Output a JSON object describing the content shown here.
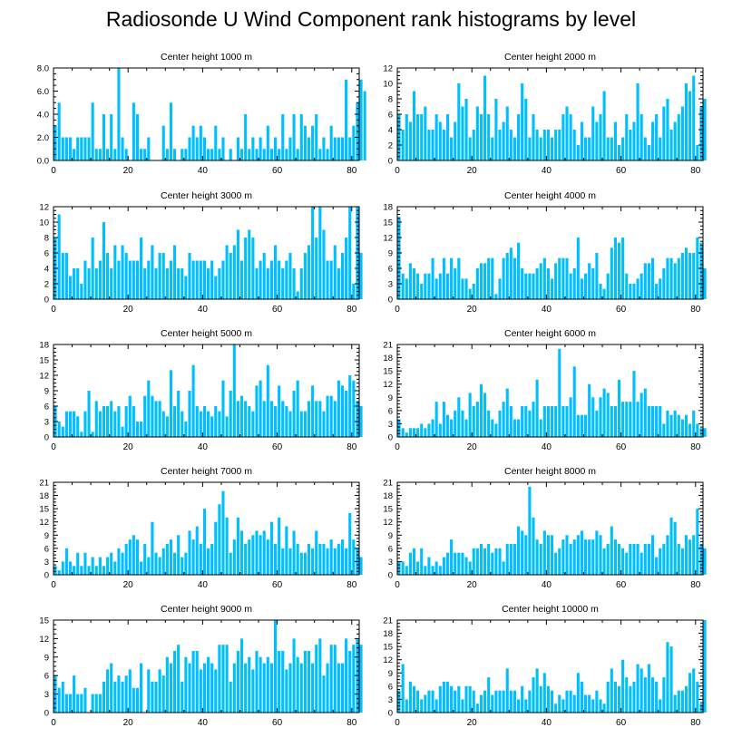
{
  "page_title": "Radiosonde U Wind Component rank histograms by level",
  "colors": {
    "bar": "#00BFFF",
    "axis": "#000000"
  },
  "chart_data": [
    {
      "type": "bar",
      "title": "Center height 1000 m",
      "xlabel": "",
      "ylabel": "",
      "xlim": [
        0,
        82
      ],
      "xticks": [
        0,
        20,
        40,
        60,
        80
      ],
      "ylim": [
        0,
        8
      ],
      "yticks": [
        "0.0",
        "2.0",
        "4.0",
        "6.0",
        "8.0"
      ],
      "values": [
        3,
        5,
        2,
        2,
        2,
        1,
        2,
        2,
        2,
        2,
        5,
        1,
        1,
        4,
        1,
        4,
        1,
        8,
        2,
        1,
        0,
        5,
        4,
        1,
        1,
        2,
        0,
        0,
        0,
        3,
        1,
        5,
        1,
        0,
        1,
        1,
        2,
        3,
        2,
        3,
        2,
        1,
        1,
        3,
        1,
        2,
        0,
        1,
        0,
        2,
        1,
        4,
        1,
        2,
        1,
        2,
        1,
        3,
        1,
        2,
        1,
        4,
        1,
        2,
        4,
        1,
        4,
        3,
        2,
        3,
        4,
        1,
        2,
        1,
        3,
        2,
        2,
        2,
        7,
        2,
        3,
        5,
        7,
        6
      ]
    },
    {
      "type": "bar",
      "title": "Center height 2000 m",
      "xlabel": "",
      "ylabel": "",
      "xlim": [
        0,
        82
      ],
      "xticks": [
        0,
        20,
        40,
        60,
        80
      ],
      "ylim": [
        0,
        12
      ],
      "yticks": [
        "0",
        "2",
        "4",
        "6",
        "8",
        "10",
        "12"
      ],
      "values": [
        6,
        4,
        6,
        5,
        9,
        6,
        6,
        7,
        4,
        4,
        6,
        5,
        4,
        6,
        3,
        5,
        10,
        7,
        8,
        3,
        4,
        7,
        6,
        11,
        6,
        3,
        8,
        4,
        5,
        7,
        4,
        3,
        6,
        10,
        8,
        3,
        6,
        4,
        3,
        4,
        4,
        3,
        4,
        4,
        6,
        7,
        6,
        4,
        2,
        5,
        3,
        3,
        7,
        5,
        6,
        9,
        3,
        3,
        5,
        2,
        3,
        6,
        4,
        5,
        10,
        6,
        3,
        2,
        5,
        6,
        3,
        7,
        8,
        4,
        5,
        6,
        7,
        10,
        9,
        11,
        2,
        7,
        8
      ]
    },
    {
      "type": "bar",
      "title": "Center height 3000 m",
      "xlabel": "",
      "ylabel": "",
      "xlim": [
        0,
        82
      ],
      "xticks": [
        0,
        20,
        40,
        60,
        80
      ],
      "ylim": [
        0,
        12
      ],
      "yticks": [
        "0",
        "2",
        "4",
        "6",
        "8",
        "10",
        "12"
      ],
      "values": [
        8,
        11,
        6,
        6,
        3,
        4,
        4,
        2,
        5,
        4,
        8,
        4,
        5,
        10,
        6,
        4,
        7,
        5,
        7,
        6,
        5,
        5,
        5,
        8,
        4,
        5,
        7,
        4,
        6,
        6,
        4,
        5,
        7,
        4,
        4,
        3,
        6,
        5,
        5,
        5,
        5,
        4,
        5,
        3,
        4,
        5,
        7,
        6,
        7,
        9,
        5,
        8,
        9,
        8,
        4,
        5,
        6,
        4,
        5,
        7,
        5,
        4,
        5,
        6,
        4,
        1,
        4,
        6,
        7,
        12,
        8,
        12,
        9,
        5,
        5,
        7,
        4,
        6,
        8,
        12,
        2,
        12,
        6
      ]
    },
    {
      "type": "bar",
      "title": "Center height 4000 m",
      "xlabel": "",
      "ylabel": "",
      "xlim": [
        0,
        82
      ],
      "xticks": [
        0,
        20,
        40,
        60,
        80
      ],
      "ylim": [
        0,
        18
      ],
      "yticks": [
        "0",
        "3",
        "6",
        "9",
        "12",
        "15",
        "18"
      ],
      "values": [
        16,
        5,
        4,
        7,
        6,
        5,
        3,
        5,
        5,
        8,
        4,
        5,
        8,
        5,
        8,
        6,
        8,
        4,
        4,
        2,
        3,
        6,
        7,
        7,
        8,
        8,
        1,
        4,
        8,
        9,
        10,
        8,
        11,
        6,
        5,
        5,
        5,
        6,
        7,
        8,
        6,
        4,
        7,
        8,
        8,
        8,
        5,
        6,
        12,
        4,
        5,
        7,
        6,
        9,
        3,
        2,
        5,
        10,
        12,
        11,
        12,
        5,
        3,
        3,
        4,
        5,
        7,
        7,
        8,
        3,
        4,
        6,
        8,
        8,
        7,
        8,
        9,
        10,
        9,
        9,
        12,
        11,
        6
      ]
    },
    {
      "type": "bar",
      "title": "Center height 5000 m",
      "xlabel": "",
      "ylabel": "",
      "xlim": [
        0,
        82
      ],
      "xticks": [
        0,
        20,
        40,
        60,
        80
      ],
      "ylim": [
        0,
        18
      ],
      "yticks": [
        "0",
        "3",
        "6",
        "9",
        "12",
        "15",
        "18"
      ],
      "values": [
        6,
        3,
        2,
        5,
        5,
        5,
        4,
        1,
        5,
        9,
        1,
        7,
        5,
        6,
        6,
        7,
        5,
        6,
        2,
        6,
        8,
        6,
        3,
        3,
        8,
        11,
        8,
        7,
        7,
        5,
        4,
        13,
        6,
        9,
        5,
        3,
        9,
        14,
        6,
        5,
        6,
        5,
        4,
        6,
        5,
        11,
        4,
        9,
        18,
        7,
        8,
        7,
        6,
        5,
        10,
        11,
        7,
        14,
        7,
        6,
        10,
        7,
        6,
        5,
        9,
        11,
        5,
        5,
        7,
        10,
        7,
        7,
        5,
        8,
        8,
        7,
        11,
        10,
        9,
        12,
        11,
        7,
        6
      ]
    },
    {
      "type": "bar",
      "title": "Center height 6000 m",
      "xlabel": "",
      "ylabel": "",
      "xlim": [
        0,
        82
      ],
      "xticks": [
        0,
        20,
        40,
        60,
        80
      ],
      "ylim": [
        0,
        21
      ],
      "yticks": [
        "0",
        "3",
        "6",
        "9",
        "12",
        "15",
        "18",
        "21"
      ],
      "values": [
        4,
        2,
        1,
        2,
        2,
        2,
        3,
        2,
        3,
        4,
        8,
        3,
        8,
        5,
        4,
        6,
        9,
        6,
        4,
        10,
        7,
        8,
        12,
        10,
        6,
        4,
        3,
        6,
        8,
        11,
        7,
        4,
        4,
        7,
        7,
        6,
        8,
        13,
        4,
        7,
        7,
        7,
        7,
        20,
        7,
        7,
        9,
        16,
        5,
        5,
        5,
        12,
        9,
        6,
        9,
        11,
        10,
        7,
        7,
        13,
        8,
        8,
        8,
        15,
        8,
        10,
        11,
        7,
        7,
        7,
        7,
        3,
        6,
        5,
        6,
        5,
        4,
        5,
        3,
        6,
        3,
        2,
        2
      ]
    },
    {
      "type": "bar",
      "title": "Center height 7000 m",
      "xlabel": "",
      "ylabel": "",
      "xlim": [
        0,
        82
      ],
      "xticks": [
        0,
        20,
        40,
        60,
        80
      ],
      "ylim": [
        0,
        21
      ],
      "yticks": [
        "0",
        "3",
        "6",
        "9",
        "12",
        "15",
        "18",
        "21"
      ],
      "values": [
        2,
        1,
        3,
        6,
        3,
        2,
        5,
        2,
        5,
        2,
        4,
        2,
        4,
        2,
        4,
        5,
        3,
        6,
        5,
        7,
        8,
        9,
        8,
        3,
        7,
        4,
        12,
        5,
        4,
        6,
        7,
        8,
        5,
        9,
        4,
        5,
        10,
        8,
        11,
        7,
        15,
        6,
        7,
        12,
        16,
        19,
        13,
        5,
        8,
        13,
        10,
        7,
        8,
        9,
        10,
        9,
        10,
        8,
        12,
        7,
        13,
        6,
        11,
        6,
        10,
        7,
        5,
        5,
        7,
        6,
        10,
        7,
        7,
        6,
        8,
        6,
        7,
        8,
        6,
        14,
        8,
        6,
        4
      ]
    },
    {
      "type": "bar",
      "title": "Center height 8000 m",
      "xlabel": "",
      "ylabel": "",
      "xlim": [
        0,
        82
      ],
      "xticks": [
        0,
        20,
        40,
        60,
        80
      ],
      "ylim": [
        0,
        21
      ],
      "yticks": [
        "0",
        "3",
        "6",
        "9",
        "12",
        "15",
        "18",
        "21"
      ],
      "values": [
        3,
        3,
        2,
        5,
        6,
        3,
        6,
        2,
        4,
        2,
        3,
        2,
        4,
        5,
        8,
        5,
        5,
        5,
        4,
        3,
        6,
        6,
        7,
        6,
        7,
        5,
        6,
        6,
        3,
        7,
        7,
        7,
        11,
        10,
        9,
        20,
        13,
        8,
        7,
        10,
        9,
        9,
        5,
        6,
        8,
        9,
        7,
        8,
        9,
        10,
        8,
        8,
        8,
        10,
        9,
        6,
        7,
        11,
        8,
        7,
        6,
        5,
        7,
        7,
        7,
        5,
        7,
        7,
        9,
        4,
        6,
        7,
        9,
        13,
        12,
        7,
        6,
        9,
        8,
        9,
        15,
        7,
        6
      ]
    },
    {
      "type": "bar",
      "title": "Center height 9000 m",
      "xlabel": "",
      "ylabel": "",
      "xlim": [
        0,
        82
      ],
      "xticks": [
        0,
        20,
        40,
        60,
        80
      ],
      "ylim": [
        0,
        15
      ],
      "yticks": [
        "0",
        "3",
        "6",
        "9",
        "12",
        "15"
      ],
      "values": [
        6,
        4,
        5,
        3,
        3,
        6,
        3,
        3,
        4,
        0,
        3,
        3,
        3,
        5,
        7,
        8,
        5,
        6,
        5,
        6,
        7,
        4,
        4,
        8,
        0,
        7,
        5,
        5,
        7,
        6,
        9,
        8,
        10,
        11,
        5,
        9,
        8,
        10,
        10,
        7,
        8,
        9,
        8,
        7,
        11,
        11,
        11,
        5,
        8,
        10,
        12,
        8,
        9,
        7,
        10,
        9,
        8,
        9,
        8,
        15,
        10,
        10,
        7,
        8,
        12,
        9,
        8,
        10,
        10,
        8,
        11,
        12,
        6,
        8,
        11,
        11,
        8,
        8,
        12,
        10,
        11,
        12,
        11
      ]
    },
    {
      "type": "bar",
      "title": "Center height 10000 m",
      "xlabel": "",
      "ylabel": "",
      "xlim": [
        0,
        82
      ],
      "xticks": [
        0,
        20,
        40,
        60,
        80
      ],
      "ylim": [
        0,
        21
      ],
      "yticks": [
        "0",
        "3",
        "6",
        "9",
        "12",
        "15",
        "18",
        "21"
      ],
      "values": [
        5,
        11,
        3,
        7,
        6,
        5,
        3,
        4,
        5,
        5,
        3,
        6,
        7,
        7,
        6,
        5,
        6,
        3,
        6,
        6,
        5,
        2,
        4,
        5,
        8,
        4,
        5,
        5,
        5,
        10,
        5,
        5,
        3,
        6,
        3,
        5,
        8,
        10,
        6,
        9,
        6,
        5,
        2,
        4,
        3,
        5,
        5,
        4,
        9,
        7,
        4,
        4,
        3,
        5,
        3,
        2,
        7,
        10,
        7,
        6,
        12,
        8,
        6,
        7,
        11,
        10,
        8,
        11,
        8,
        7,
        3,
        8,
        16,
        15,
        4,
        5,
        5,
        6,
        9,
        10,
        7,
        2,
        21
      ]
    }
  ]
}
